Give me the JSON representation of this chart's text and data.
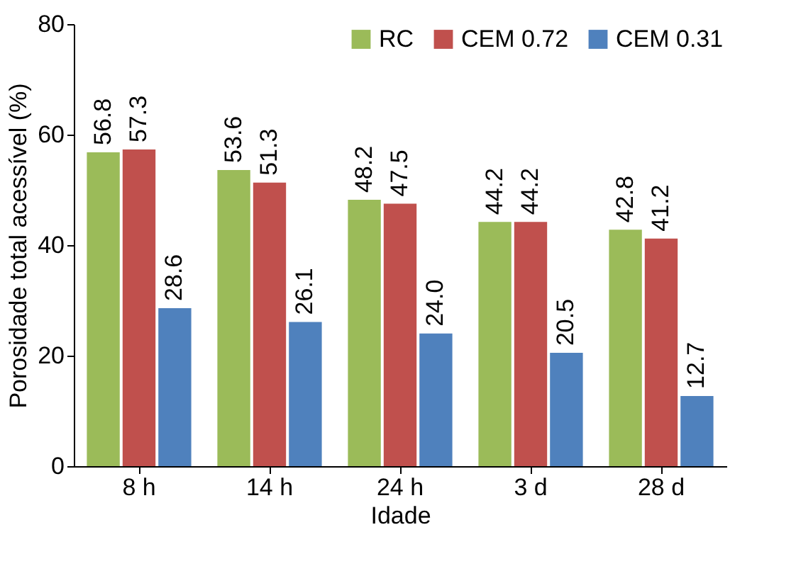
{
  "chart_data": {
    "type": "bar",
    "xlabel": "Idade",
    "ylabel": "Porosidade total acessível (%)",
    "categories": [
      "8 h",
      "14 h",
      "24 h",
      "3 d",
      "28 d"
    ],
    "series": [
      {
        "name": "RC",
        "color": "#9bbb59",
        "values": [
          56.8,
          53.6,
          48.2,
          44.2,
          42.8
        ],
        "value_labels": [
          "56.8",
          "53.6",
          "48.2",
          "44.2",
          "42.8"
        ]
      },
      {
        "name": "CEM 0.72",
        "color": "#c0504d",
        "values": [
          57.3,
          51.3,
          47.5,
          44.2,
          41.2
        ],
        "value_labels": [
          "57.3",
          "51.3",
          "47.5",
          "44.2",
          "41.2"
        ]
      },
      {
        "name": "CEM 0.31",
        "color": "#4f81bd",
        "values": [
          28.6,
          26.1,
          24.0,
          20.5,
          12.7
        ],
        "value_labels": [
          "28.6",
          "26.1",
          "24.0",
          "20.5",
          "12.7"
        ]
      }
    ],
    "ylim": [
      0,
      80
    ],
    "yticks": [
      0,
      20,
      40,
      60,
      80
    ],
    "grid": false,
    "legend": "top right"
  }
}
